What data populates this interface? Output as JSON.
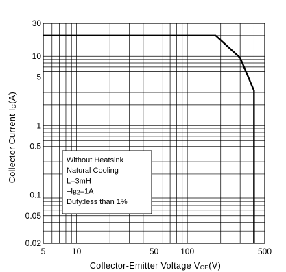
{
  "chart_data": {
    "type": "line",
    "xlabel_main": "Collector-Emitter Voltage V",
    "xlabel_sub": "CE",
    "xlabel_unit": "(V)",
    "ylabel_main": "Collector Current I",
    "ylabel_sub": "C",
    "ylabel_unit": "(A)",
    "x_scale": "log",
    "y_scale": "log",
    "xlim": [
      5,
      500
    ],
    "ylim": [
      0.02,
      30
    ],
    "x_ticks": [
      {
        "value": 5,
        "label": "5"
      },
      {
        "value": 10,
        "label": "10"
      },
      {
        "value": 50,
        "label": "50"
      },
      {
        "value": 100,
        "label": "100"
      },
      {
        "value": 500,
        "label": "500"
      }
    ],
    "y_ticks": [
      {
        "value": 30,
        "label": "30"
      },
      {
        "value": 10,
        "label": "10"
      },
      {
        "value": 5,
        "label": "5"
      },
      {
        "value": 1,
        "label": "1"
      },
      {
        "value": 0.5,
        "label": "0.5"
      },
      {
        "value": 0.1,
        "label": "0.1"
      },
      {
        "value": 0.05,
        "label": "0.05"
      },
      {
        "value": 0.02,
        "label": "0.02"
      }
    ],
    "x_minor_grid": [
      6,
      7,
      8,
      9,
      20,
      30,
      40,
      60,
      70,
      80,
      90,
      200,
      300,
      400
    ],
    "y_minor_grid": [
      0.03,
      0.04,
      0.06,
      0.07,
      0.08,
      0.09,
      0.2,
      0.3,
      0.4,
      0.6,
      0.7,
      0.8,
      0.9,
      2,
      3,
      4,
      6,
      7,
      8,
      9,
      20
    ],
    "grid": true,
    "series": [
      {
        "points": [
          {
            "x": 5,
            "y": 20
          },
          {
            "x": 180,
            "y": 20
          },
          {
            "x": 300,
            "y": 9.5
          },
          {
            "x": 400,
            "y": 3.2
          },
          {
            "x": 400,
            "y": 0.02
          }
        ],
        "color": "#000000"
      }
    ],
    "legend_lines": [
      {
        "text": "Without Heatsink"
      },
      {
        "text": "Natural Cooling"
      },
      {
        "text": "L=3mH"
      },
      {
        "prefix": "–I",
        "sub": "B2",
        "suffix": "=1A"
      },
      {
        "text": "Duty:less than 1%"
      }
    ],
    "legend_placement": "lower-left"
  }
}
